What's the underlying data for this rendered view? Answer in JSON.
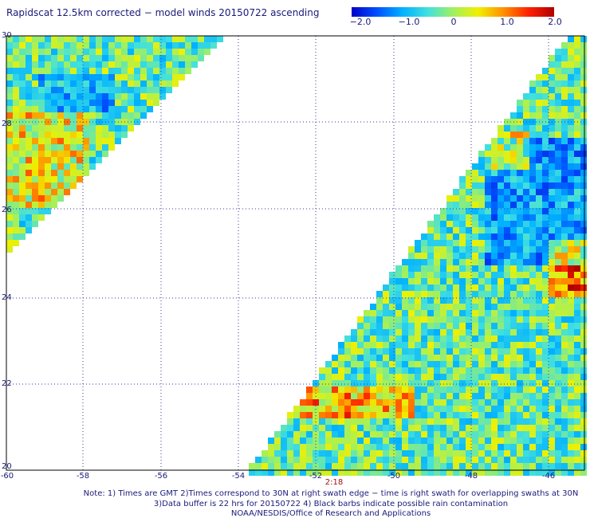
{
  "title": "Rapidscat 12.5km corrected − model winds 20150722 ascending",
  "colorbar": {
    "labels": [
      "−2.0",
      "−1.0",
      "0",
      "1.0",
      "2.0"
    ],
    "range": [
      -2.0,
      2.0
    ]
  },
  "map": {
    "lon_range": [
      -60,
      -44.8
    ],
    "lat_range": [
      20,
      30
    ],
    "lat_ticks": [
      "30",
      "28",
      "26",
      "24",
      "22",
      "20"
    ],
    "lon_ticks": [
      "-60",
      "-58",
      "-56",
      "-54",
      "-52",
      "-50",
      "-48",
      "-46"
    ],
    "swath_time": "2:18"
  },
  "notes": [
    "Note: 1) Times are GMT 2)Times correspond to 30N at right swath edge − time is right swath for overlapping swaths at 30N",
    "3)Data buffer is 22 hrs for 20150722 4) Black barbs indicate possible rain contamination",
    "NOAA/NESDIS/Office of Research and Applications"
  ]
}
